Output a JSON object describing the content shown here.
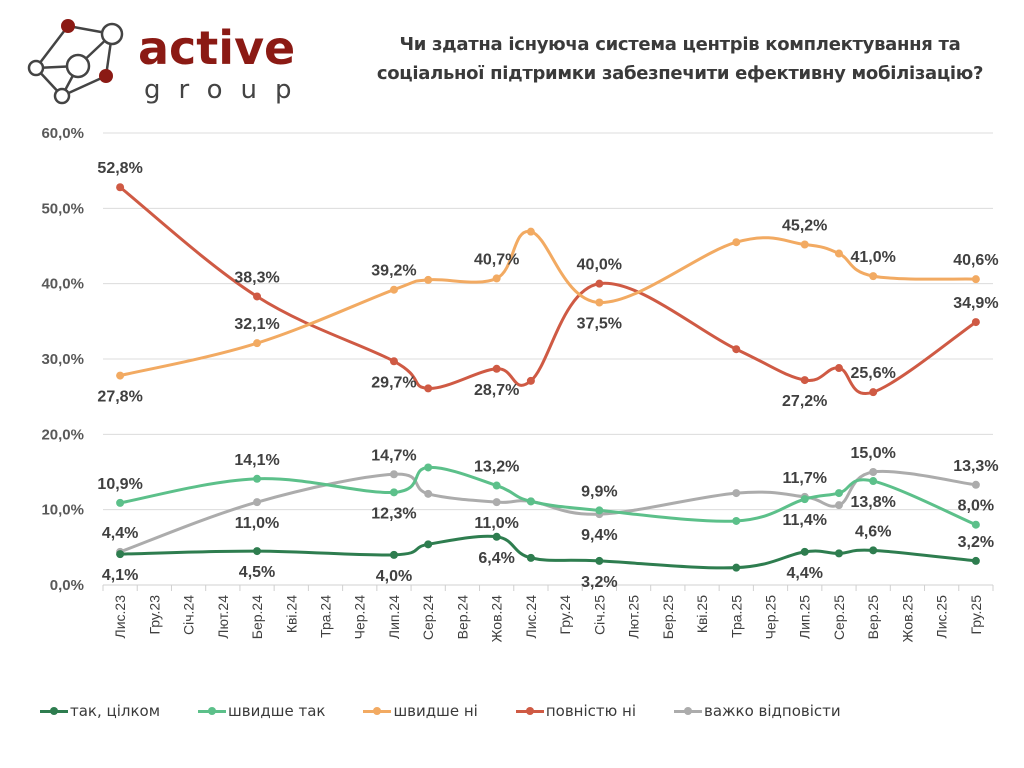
{
  "logo": {
    "word1": "active",
    "word2": "group",
    "brand_color": "#8b1a14"
  },
  "header": {
    "title_line1": "Чи здатна існуюча система центрів комплектування та",
    "title_line2": "соціальної підтримки забезпечити ефективну мобілізацію?"
  },
  "chart_data": {
    "type": "line",
    "title": "Чи здатна існуюча система центрів комплектування та соціальної підтримки забезпечити ефективну мобілізацію?",
    "xlabel": "",
    "ylabel": "",
    "ylim": [
      0,
      60
    ],
    "yticks": [
      "0,0%",
      "10,0%",
      "20,0%",
      "30,0%",
      "40,0%",
      "50,0%",
      "60,0%"
    ],
    "ytick_values": [
      0,
      10,
      20,
      30,
      40,
      50,
      60
    ],
    "grid": true,
    "legend_position": "bottom",
    "categories": [
      "Лис.23",
      "Гру.23",
      "Січ.24",
      "Лют.24",
      "Бер.24",
      "Кві.24",
      "Тра.24",
      "Чер.24",
      "Лип.24",
      "Сер.24",
      "Вер.24",
      "Жов.24",
      "Лис.24",
      "Гру.24",
      "Січ.25",
      "Лют.25",
      "Бер.25",
      "Кві.25",
      "Тра.25",
      "Чер.25",
      "Лип.25",
      "Сер.25",
      "Вер.25",
      "Жов.25",
      "Лис.25",
      "Гру.25"
    ],
    "point_categories": [
      "Лис.23",
      "Бер.24",
      "Лип.24",
      "Сер.24",
      "Жов.24",
      "Лис.24",
      "Січ.25",
      "Тра.25",
      "Лип.25",
      "Сер.25",
      "Вер.25",
      "Гру.25"
    ],
    "series": [
      {
        "name": "так, цілком",
        "color": "#2e7d4f",
        "values": [
          4.1,
          4.5,
          4.0,
          5.4,
          6.4,
          3.6,
          3.2,
          2.3,
          4.4,
          4.2,
          4.6,
          3.2
        ],
        "labels": [
          "4,1%",
          "4,5%",
          "4,0%",
          null,
          "6,4%",
          null,
          "3,2%",
          null,
          "4,4%",
          null,
          "4,6%",
          "3,2%"
        ],
        "label_pos": [
          "below",
          "below",
          "below",
          null,
          "below",
          null,
          "below",
          null,
          "below",
          null,
          "above",
          "above"
        ]
      },
      {
        "name": "швидше так",
        "color": "#5cc08a",
        "values": [
          10.9,
          14.1,
          12.3,
          15.6,
          13.2,
          11.1,
          9.9,
          8.5,
          11.4,
          12.2,
          13.8,
          8.0
        ],
        "labels": [
          "10,9%",
          "14,1%",
          "12,3%",
          null,
          "13,2%",
          null,
          "9,9%",
          null,
          "11,4%",
          null,
          "13,8%",
          "8,0%"
        ],
        "label_pos": [
          "above",
          "above",
          "below",
          null,
          "above",
          null,
          "above",
          null,
          "below",
          null,
          "below",
          "above"
        ]
      },
      {
        "name": "швидше ні",
        "color": "#f2aa62",
        "values": [
          27.8,
          32.1,
          39.2,
          40.5,
          40.7,
          46.9,
          37.5,
          45.5,
          45.2,
          44.0,
          41.0,
          40.6
        ],
        "labels": [
          "27,8%",
          "32,1%",
          "39,2%",
          null,
          "40,7%",
          null,
          "37,5%",
          null,
          "45,2%",
          null,
          "41,0%",
          "40,6%"
        ],
        "label_pos": [
          "below",
          "above",
          "above",
          null,
          "above",
          null,
          "below",
          null,
          "above",
          null,
          "above",
          "above"
        ]
      },
      {
        "name": "повністю ні",
        "color": "#cf5a44",
        "values": [
          52.8,
          38.3,
          29.7,
          26.1,
          28.7,
          27.1,
          40.0,
          31.3,
          27.2,
          28.8,
          25.6,
          34.9
        ],
        "labels": [
          "52,8%",
          "38,3%",
          "29,7%",
          null,
          "28,7%",
          null,
          "40,0%",
          null,
          "27,2%",
          null,
          "25,6%",
          "34,9%"
        ],
        "label_pos": [
          "above",
          "above",
          "below",
          null,
          "below",
          null,
          "above",
          null,
          "below",
          null,
          "above",
          "above"
        ]
      },
      {
        "name": "важко відповісти",
        "color": "#acacac",
        "values": [
          4.4,
          11.0,
          14.7,
          12.1,
          11.0,
          11.1,
          9.4,
          12.2,
          11.7,
          10.6,
          15.0,
          13.3
        ],
        "labels": [
          "4,4%",
          "11,0%",
          "14,7%",
          null,
          "11,0%",
          null,
          "9,4%",
          null,
          "11,7%",
          null,
          "15,0%",
          "13,3%"
        ],
        "label_pos": [
          "above",
          "below",
          "above",
          null,
          "below",
          null,
          "below",
          null,
          "above",
          null,
          "above",
          "above"
        ]
      }
    ]
  }
}
